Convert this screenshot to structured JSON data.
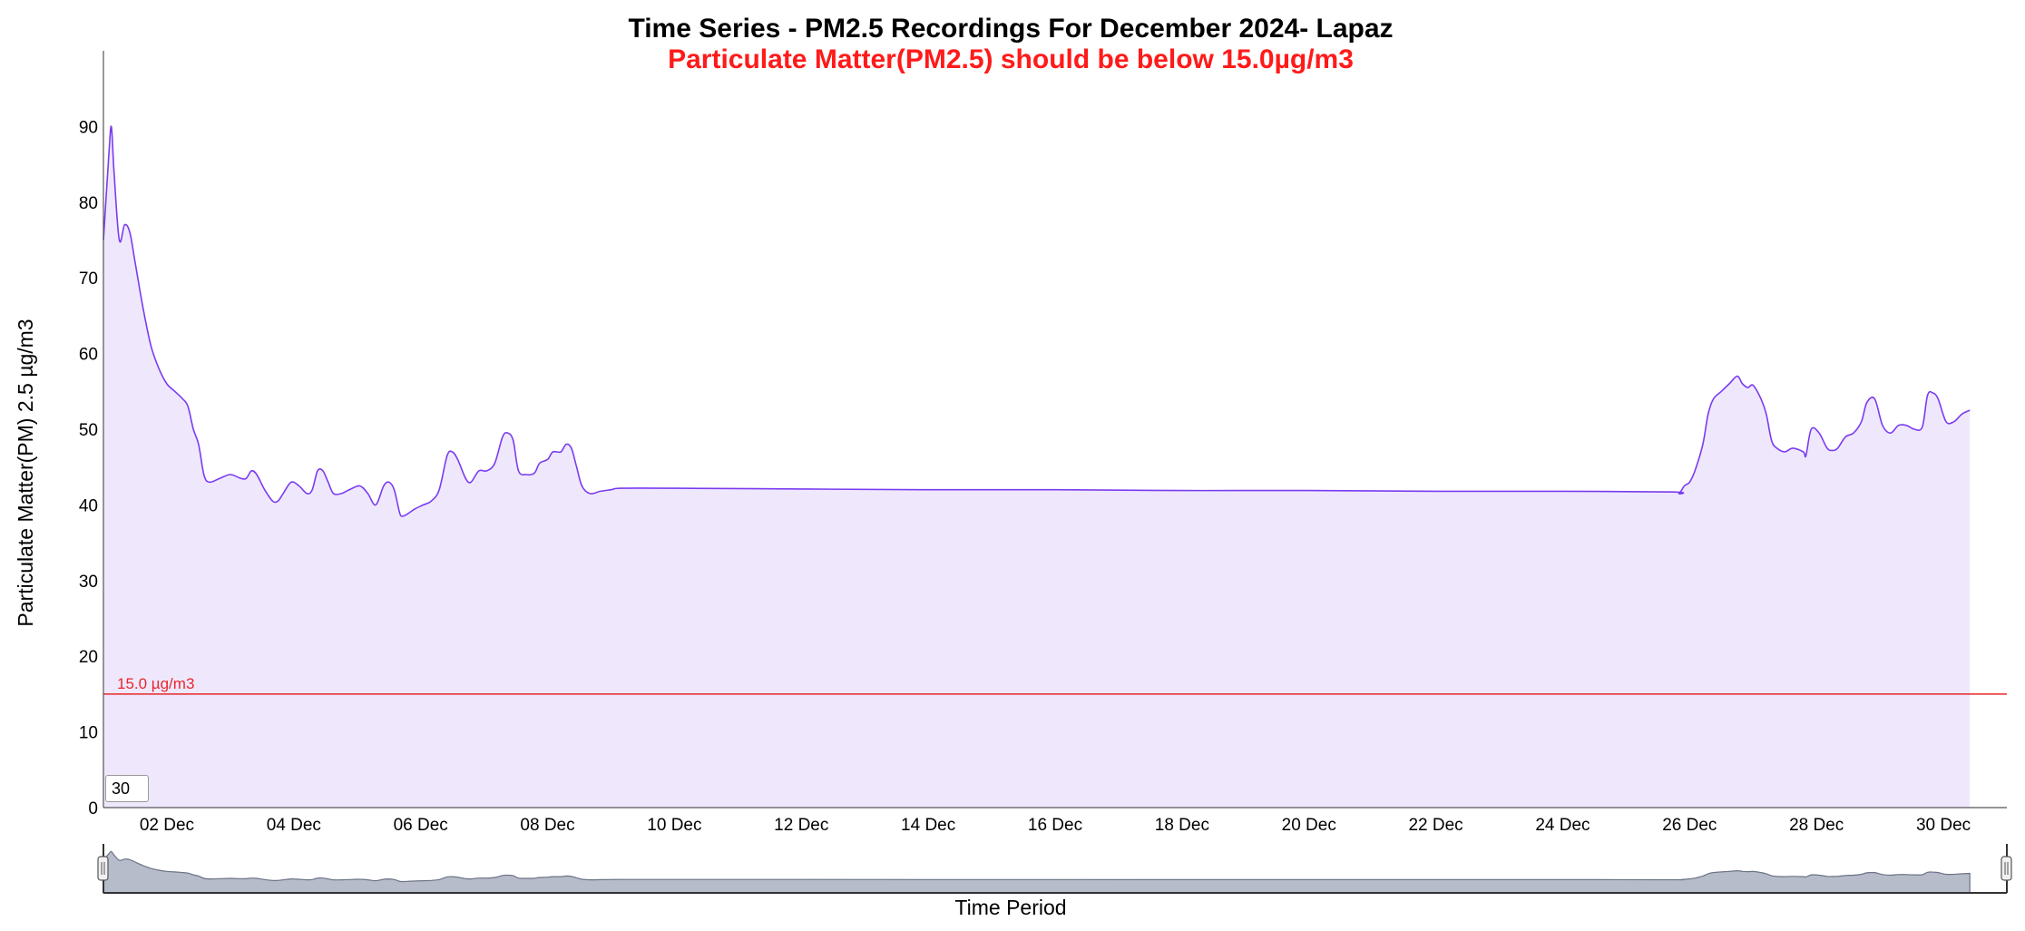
{
  "title": "Time Series - PM2.5 Recordings For December 2024- Lapaz",
  "subtitle": "Particulate Matter(PM2.5) should be below 15.0µg/m3",
  "colors": {
    "line": "#7a3cf0",
    "area": "#efe8fd",
    "threshold": "#e8262b",
    "subtitle": "#ff1a1a",
    "navigator_fill": "#b7bccb",
    "navigator_line": "#6b7385"
  },
  "window_input_value": "30",
  "chart_data": {
    "type": "area",
    "title": "Time Series - PM2.5 Recordings For December 2024- Lapaz",
    "subtitle": "Particulate Matter(PM2.5) should be below 15.0µg/m3",
    "xlabel": "Time Period",
    "ylabel": "Particulate Matter(PM) 2.5 µg/m3",
    "ylim": [
      0,
      100
    ],
    "xlim": [
      "2024-12-01",
      "2024-12-31"
    ],
    "yticks": [
      "0",
      "10",
      "20",
      "30",
      "40",
      "50",
      "60",
      "70",
      "80",
      "90"
    ],
    "xticks": [
      "02 Dec",
      "04 Dec",
      "06 Dec",
      "08 Dec",
      "10 Dec",
      "12 Dec",
      "14 Dec",
      "16 Dec",
      "18 Dec",
      "20 Dec",
      "22 Dec",
      "24 Dec",
      "26 Dec",
      "28 Dec",
      "30 Dec"
    ],
    "grid": false,
    "threshold": {
      "value": 15,
      "label": "15.0 µg/m3"
    },
    "series": [
      {
        "points": [
          [
            "2024-12-01 00:00",
            75
          ],
          [
            "2024-12-01 02:00",
            86
          ],
          [
            "2024-12-01 03:00",
            90
          ],
          [
            "2024-12-01 04:00",
            84
          ],
          [
            "2024-12-01 06:00",
            75
          ],
          [
            "2024-12-01 08:00",
            77
          ],
          [
            "2024-12-01 10:00",
            76
          ],
          [
            "2024-12-01 12:00",
            72
          ],
          [
            "2024-12-01 15:00",
            66
          ],
          [
            "2024-12-01 18:00",
            61
          ],
          [
            "2024-12-01 21:00",
            58
          ],
          [
            "2024-12-02 00:00",
            56
          ],
          [
            "2024-12-02 03:00",
            55
          ],
          [
            "2024-12-02 06:00",
            54
          ],
          [
            "2024-12-02 08:00",
            53
          ],
          [
            "2024-12-02 10:00",
            50
          ],
          [
            "2024-12-02 12:00",
            48
          ],
          [
            "2024-12-02 14:00",
            44
          ],
          [
            "2024-12-02 16:00",
            43
          ],
          [
            "2024-12-02 20:00",
            43.5
          ],
          [
            "2024-12-03 00:00",
            44
          ],
          [
            "2024-12-03 04:00",
            43.5
          ],
          [
            "2024-12-03 06:00",
            43.5
          ],
          [
            "2024-12-03 08:00",
            44.5
          ],
          [
            "2024-12-03 10:00",
            44
          ],
          [
            "2024-12-03 13:00",
            42
          ],
          [
            "2024-12-03 16:00",
            40.5
          ],
          [
            "2024-12-03 18:00",
            40.5
          ],
          [
            "2024-12-03 20:00",
            41.5
          ],
          [
            "2024-12-03 23:00",
            43
          ],
          [
            "2024-12-04 02:00",
            42.5
          ],
          [
            "2024-12-04 05:00",
            41.5
          ],
          [
            "2024-12-04 07:00",
            42
          ],
          [
            "2024-12-04 09:00",
            44.5
          ],
          [
            "2024-12-04 11:00",
            44.5
          ],
          [
            "2024-12-04 13:00",
            43
          ],
          [
            "2024-12-04 15:00",
            41.5
          ],
          [
            "2024-12-04 18:00",
            41.5
          ],
          [
            "2024-12-04 21:00",
            42
          ],
          [
            "2024-12-05 01:00",
            42.5
          ],
          [
            "2024-12-05 04:00",
            41.5
          ],
          [
            "2024-12-05 07:00",
            40
          ],
          [
            "2024-12-05 10:00",
            42.5
          ],
          [
            "2024-12-05 12:00",
            43
          ],
          [
            "2024-12-05 14:00",
            42
          ],
          [
            "2024-12-05 16:00",
            39
          ],
          [
            "2024-12-05 17:00",
            38.5
          ],
          [
            "2024-12-05 19:00",
            38.8
          ],
          [
            "2024-12-05 22:00",
            39.5
          ],
          [
            "2024-12-06 01:00",
            40
          ],
          [
            "2024-12-06 04:00",
            40.5
          ],
          [
            "2024-12-06 07:00",
            42
          ],
          [
            "2024-12-06 10:00",
            46.5
          ],
          [
            "2024-12-06 12:00",
            47
          ],
          [
            "2024-12-06 14:00",
            46
          ],
          [
            "2024-12-06 17:00",
            43.5
          ],
          [
            "2024-12-06 19:00",
            43
          ],
          [
            "2024-12-06 22:00",
            44.5
          ],
          [
            "2024-12-07 01:00",
            44.5
          ],
          [
            "2024-12-07 04:00",
            45.5
          ],
          [
            "2024-12-07 07:00",
            49
          ],
          [
            "2024-12-07 09:00",
            49.5
          ],
          [
            "2024-12-07 11:00",
            48.5
          ],
          [
            "2024-12-07 13:00",
            44.5
          ],
          [
            "2024-12-07 16:00",
            44
          ],
          [
            "2024-12-07 19:00",
            44.2
          ],
          [
            "2024-12-07 21:00",
            45.5
          ],
          [
            "2024-12-08 00:00",
            46
          ],
          [
            "2024-12-08 02:00",
            47
          ],
          [
            "2024-12-08 05:00",
            47
          ],
          [
            "2024-12-08 07:00",
            48
          ],
          [
            "2024-12-08 09:00",
            47.5
          ],
          [
            "2024-12-08 11:00",
            45
          ],
          [
            "2024-12-08 13:00",
            42.5
          ],
          [
            "2024-12-08 16:00",
            41.5
          ],
          [
            "2024-12-08 20:00",
            41.8
          ],
          [
            "2024-12-09 00:00",
            42
          ],
          [
            "2024-12-09 04:00",
            42.2
          ],
          [
            "2024-12-10 00:00",
            42.2
          ],
          [
            "2024-12-12 00:00",
            42.1
          ],
          [
            "2024-12-14 00:00",
            42.0
          ],
          [
            "2024-12-16 00:00",
            42.0
          ],
          [
            "2024-12-18 00:00",
            41.9
          ],
          [
            "2024-12-20 00:00",
            41.9
          ],
          [
            "2024-12-22 00:00",
            41.8
          ],
          [
            "2024-12-24 00:00",
            41.8
          ],
          [
            "2024-12-25 18:00",
            41.7
          ],
          [
            "2024-12-25 20:00",
            41.5
          ],
          [
            "2024-12-25 22:00",
            42.5
          ],
          [
            "2024-12-26 00:00",
            43
          ],
          [
            "2024-12-26 02:00",
            44.5
          ],
          [
            "2024-12-26 05:00",
            48
          ],
          [
            "2024-12-26 07:00",
            52
          ],
          [
            "2024-12-26 09:00",
            54
          ],
          [
            "2024-12-26 12:00",
            55
          ],
          [
            "2024-12-26 15:00",
            56
          ],
          [
            "2024-12-26 18:00",
            57
          ],
          [
            "2024-12-26 20:00",
            56
          ],
          [
            "2024-12-26 22:00",
            55.5
          ],
          [
            "2024-12-27 00:00",
            55.8
          ],
          [
            "2024-12-27 03:00",
            54
          ],
          [
            "2024-12-27 05:00",
            52
          ],
          [
            "2024-12-27 07:00",
            48.5
          ],
          [
            "2024-12-27 09:00",
            47.5
          ],
          [
            "2024-12-27 12:00",
            47
          ],
          [
            "2024-12-27 15:00",
            47.5
          ],
          [
            "2024-12-27 19:00",
            47
          ],
          [
            "2024-12-27 20:00",
            46.5
          ],
          [
            "2024-12-27 22:00",
            50
          ],
          [
            "2024-12-28 01:00",
            49.5
          ],
          [
            "2024-12-28 04:00",
            47.5
          ],
          [
            "2024-12-28 06:00",
            47.2
          ],
          [
            "2024-12-28 08:00",
            47.5
          ],
          [
            "2024-12-28 11:00",
            49
          ],
          [
            "2024-12-28 14:00",
            49.5
          ],
          [
            "2024-12-28 17:00",
            51
          ],
          [
            "2024-12-28 19:00",
            53.5
          ],
          [
            "2024-12-28 22:00",
            54
          ],
          [
            "2024-12-29 01:00",
            50.5
          ],
          [
            "2024-12-29 04:00",
            49.5
          ],
          [
            "2024-12-29 07:00",
            50.5
          ],
          [
            "2024-12-29 10:00",
            50.5
          ],
          [
            "2024-12-29 13:00",
            50
          ],
          [
            "2024-12-29 16:00",
            50.3
          ],
          [
            "2024-12-29 18:00",
            54.5
          ],
          [
            "2024-12-29 20:00",
            54.8
          ],
          [
            "2024-12-29 22:00",
            54
          ],
          [
            "2024-12-30 01:00",
            51
          ],
          [
            "2024-12-30 04:00",
            51
          ],
          [
            "2024-12-30 07:00",
            52
          ],
          [
            "2024-12-30 10:00",
            52.5
          ]
        ]
      }
    ]
  }
}
